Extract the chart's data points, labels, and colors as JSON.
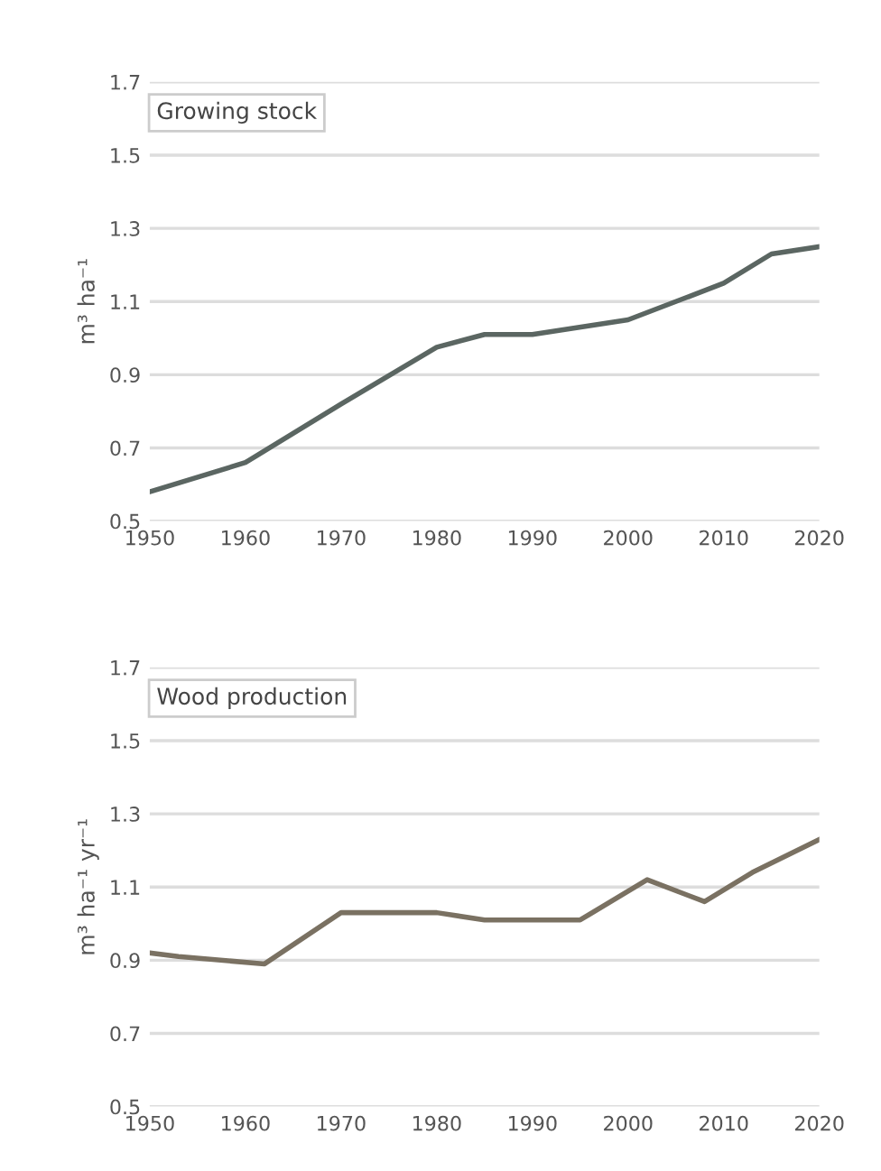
{
  "chart_data": [
    {
      "type": "line",
      "title": "Growing stock",
      "ylabel": "m³ ha⁻¹",
      "x": [
        1950,
        1960,
        1970,
        1980,
        1985,
        1990,
        2000,
        2010,
        2015,
        2020
      ],
      "series": [
        {
          "color": "#5b6662",
          "values": [
            0.58,
            0.66,
            0.82,
            0.975,
            1.01,
            1.01,
            1.05,
            1.15,
            1.23,
            1.25
          ]
        }
      ],
      "xlim": [
        1950,
        2020
      ],
      "xticks": [
        1950,
        1960,
        1970,
        1980,
        1990,
        2000,
        2010,
        2020
      ],
      "ylim": [
        0.5,
        1.7
      ],
      "yticks": [
        0.5,
        0.7,
        0.9,
        1.1,
        1.3,
        1.5,
        1.7
      ],
      "grid": "y"
    },
    {
      "type": "line",
      "title": "Wood production",
      "ylabel": "m³ ha⁻¹ yr⁻¹",
      "x": [
        1950,
        1953,
        1962,
        1970,
        1980,
        1985,
        1995,
        2002,
        2008,
        2013,
        2020
      ],
      "series": [
        {
          "color": "#7a7162",
          "values": [
            0.92,
            0.91,
            0.89,
            1.03,
            1.03,
            1.01,
            1.01,
            1.12,
            1.06,
            1.14,
            1.23
          ]
        }
      ],
      "xlim": [
        1950,
        2020
      ],
      "xticks": [
        1950,
        1960,
        1970,
        1980,
        1990,
        2000,
        2010,
        2020
      ],
      "ylim": [
        0.5,
        1.7
      ],
      "yticks": [
        0.5,
        0.7,
        0.9,
        1.1,
        1.3,
        1.5,
        1.7
      ],
      "grid": "y"
    }
  ]
}
